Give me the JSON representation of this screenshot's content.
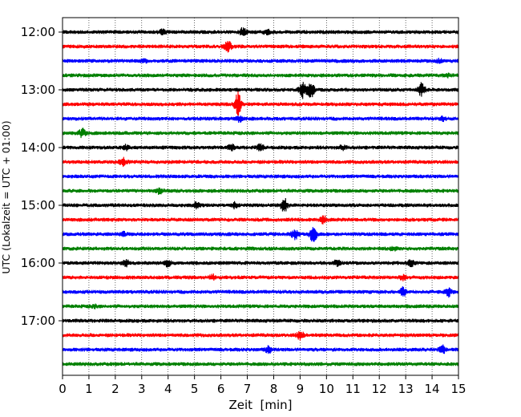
{
  "chart_data": {
    "type": "line",
    "title": "",
    "xlabel": "Zeit  [min]",
    "ylabel": "UTC (Lokalzeit = UTC + 01:00)",
    "xlim": [
      0,
      15
    ],
    "x_ticks": [
      "0",
      "1",
      "2",
      "3",
      "4",
      "5",
      "6",
      "7",
      "8",
      "9",
      "10",
      "11",
      "12",
      "13",
      "14",
      "15"
    ],
    "y_ticks": [
      {
        "time": "12:00",
        "row": 0
      },
      {
        "time": "13:00",
        "row": 4
      },
      {
        "time": "14:00",
        "row": 8
      },
      {
        "time": "15:00",
        "row": 12
      },
      {
        "time": "16:00",
        "row": 16
      },
      {
        "time": "17:00",
        "row": 20
      }
    ],
    "grid": "vertical-dotted",
    "trace_interval_min": 15,
    "color_cycle": [
      "#000000",
      "#ff0000",
      "#0000ff",
      "#008000"
    ],
    "traces": [
      {
        "start": "12:00",
        "events": [
          {
            "t": 3.8,
            "amp": 0.25
          },
          {
            "t": 6.85,
            "amp": 0.5
          },
          {
            "t": 7.75,
            "amp": 0.25
          }
        ]
      },
      {
        "start": "12:15",
        "events": [
          {
            "t": 6.25,
            "amp": 0.9
          }
        ]
      },
      {
        "start": "12:30",
        "events": [
          {
            "t": 3.1,
            "amp": 0.2
          },
          {
            "t": 14.3,
            "amp": 0.2
          }
        ]
      },
      {
        "start": "12:45",
        "events": [
          {
            "t": 14.6,
            "amp": 0.15
          }
        ]
      },
      {
        "start": "13:00",
        "events": [
          {
            "t": 9.1,
            "amp": 1.0
          },
          {
            "t": 9.4,
            "amp": 1.0
          },
          {
            "t": 13.6,
            "amp": 0.8
          }
        ]
      },
      {
        "start": "13:15",
        "events": [
          {
            "t": 6.65,
            "amp": 1.4
          }
        ]
      },
      {
        "start": "13:30",
        "events": [
          {
            "t": 6.7,
            "amp": 0.3
          },
          {
            "t": 14.4,
            "amp": 0.2
          }
        ]
      },
      {
        "start": "13:45",
        "events": [
          {
            "t": 0.75,
            "amp": 0.5
          }
        ]
      },
      {
        "start": "14:00",
        "events": [
          {
            "t": 2.4,
            "amp": 0.25
          },
          {
            "t": 6.4,
            "amp": 0.3
          },
          {
            "t": 7.5,
            "amp": 0.35
          },
          {
            "t": 10.6,
            "amp": 0.3
          }
        ]
      },
      {
        "start": "14:15",
        "events": [
          {
            "t": 2.3,
            "amp": 0.4
          }
        ]
      },
      {
        "start": "14:30",
        "events": []
      },
      {
        "start": "14:45",
        "events": [
          {
            "t": 3.7,
            "amp": 0.35
          }
        ]
      },
      {
        "start": "15:00",
        "events": [
          {
            "t": 5.1,
            "amp": 0.45
          },
          {
            "t": 6.5,
            "amp": 0.3
          },
          {
            "t": 8.4,
            "amp": 0.8
          }
        ]
      },
      {
        "start": "15:15",
        "events": [
          {
            "t": 9.9,
            "amp": 0.4
          }
        ]
      },
      {
        "start": "15:30",
        "events": [
          {
            "t": 2.3,
            "amp": 0.2
          },
          {
            "t": 8.8,
            "amp": 0.6
          },
          {
            "t": 9.5,
            "amp": 1.0
          }
        ]
      },
      {
        "start": "15:45",
        "events": [
          {
            "t": 12.5,
            "amp": 0.25
          }
        ]
      },
      {
        "start": "16:00",
        "events": [
          {
            "t": 2.4,
            "amp": 0.4
          },
          {
            "t": 4.0,
            "amp": 0.5
          },
          {
            "t": 10.4,
            "amp": 0.3
          },
          {
            "t": 13.2,
            "amp": 0.35
          }
        ]
      },
      {
        "start": "16:15",
        "events": [
          {
            "t": 5.7,
            "amp": 0.3
          },
          {
            "t": 12.9,
            "amp": 0.3
          }
        ]
      },
      {
        "start": "16:30",
        "events": [
          {
            "t": 12.9,
            "amp": 0.5
          },
          {
            "t": 14.6,
            "amp": 0.6
          }
        ]
      },
      {
        "start": "16:45",
        "events": [
          {
            "t": 1.2,
            "amp": 0.15
          }
        ]
      },
      {
        "start": "17:00",
        "events": []
      },
      {
        "start": "17:15",
        "events": [
          {
            "t": 9.0,
            "amp": 0.5
          }
        ]
      },
      {
        "start": "17:30",
        "events": [
          {
            "t": 7.8,
            "amp": 0.35
          },
          {
            "t": 14.4,
            "amp": 0.45
          }
        ]
      },
      {
        "start": "17:45",
        "events": []
      }
    ]
  }
}
